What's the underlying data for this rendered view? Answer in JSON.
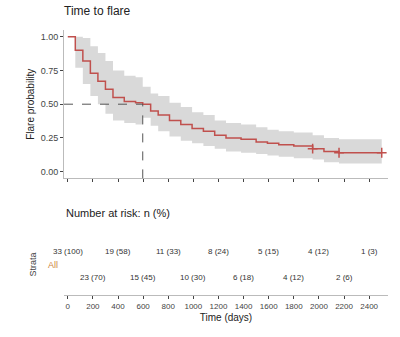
{
  "chart_data": {
    "type": "survival",
    "title": "Time to flare",
    "xlabel": "Time (days)",
    "ylabel": "Flare probability",
    "xlim": [
      -30,
      2550
    ],
    "ylim": [
      -0.05,
      1.05
    ],
    "xticks": [
      0,
      200,
      400,
      600,
      800,
      1000,
      1200,
      1400,
      1600,
      1800,
      2000,
      2200,
      2400
    ],
    "yticks": [
      {
        "value": 0,
        "label": "0.00"
      },
      0.25,
      {
        "value": 0.5,
        "label": "0.50"
      },
      0.75,
      {
        "value": 1,
        "label": "1.00"
      }
    ],
    "grid": false,
    "series": [
      {
        "type": "band",
        "color": "#d9d9d9",
        "x": [
          0,
          60,
          120,
          180,
          240,
          300,
          360,
          450,
          540,
          597,
          660,
          720,
          810,
          900,
          990,
          1080,
          1170,
          1260,
          1380,
          1500,
          1590,
          1680,
          1800,
          1950,
          2040,
          2160,
          2280,
          2500
        ],
        "upper": [
          1.0,
          1.0,
          0.99,
          0.93,
          0.88,
          0.82,
          0.75,
          0.71,
          0.7,
          0.63,
          0.58,
          0.56,
          0.51,
          0.48,
          0.44,
          0.42,
          0.38,
          0.36,
          0.35,
          0.33,
          0.31,
          0.3,
          0.29,
          0.27,
          0.25,
          0.24,
          0.24,
          0.24
        ],
        "lower": [
          1.0,
          0.77,
          0.65,
          0.56,
          0.5,
          0.43,
          0.38,
          0.36,
          0.35,
          0.4,
          0.34,
          0.3,
          0.26,
          0.23,
          0.21,
          0.19,
          0.17,
          0.15,
          0.14,
          0.13,
          0.12,
          0.11,
          0.1,
          0.09,
          0.07,
          0.06,
          0.06,
          0.06
        ]
      },
      {
        "type": "line",
        "line_style": "step",
        "color": "#c0504d",
        "x": [
          0,
          60,
          120,
          180,
          240,
          300,
          360,
          450,
          540,
          597,
          660,
          720,
          810,
          900,
          990,
          1080,
          1170,
          1260,
          1380,
          1500,
          1590,
          1680,
          1800,
          1950,
          2040,
          2160,
          2280,
          2500
        ],
        "values": [
          1.0,
          0.9,
          0.82,
          0.73,
          0.67,
          0.61,
          0.55,
          0.52,
          0.51,
          0.5,
          0.45,
          0.42,
          0.38,
          0.35,
          0.32,
          0.3,
          0.27,
          0.25,
          0.24,
          0.22,
          0.21,
          0.2,
          0.19,
          0.17,
          0.15,
          0.14,
          0.14,
          0.14
        ]
      },
      {
        "type": "scatter",
        "marker": "plus",
        "color": "#c0504d",
        "x": [
          1950,
          2160,
          2500
        ],
        "values": [
          0.17,
          0.14,
          0.14
        ]
      }
    ],
    "median": {
      "x": 597,
      "y": 0.5,
      "line_style": "dashed"
    },
    "risk_table": {
      "title": "Number at risk: n (%)",
      "ylabel": "Strata",
      "strata": "All",
      "color": "#cd853f",
      "x": [
        0,
        200,
        400,
        600,
        800,
        1000,
        1200,
        1400,
        1600,
        1800,
        2000,
        2200,
        2400
      ],
      "labels": [
        "33 (100)",
        "23 (70)",
        "19 (58)",
        "15 (45)",
        "11 (33)",
        "10 (30)",
        "8 (24)",
        "6 (18)",
        "5 (15)",
        "4 (12)",
        "4 (12)",
        "2 (6)",
        "1 (3)"
      ]
    }
  }
}
